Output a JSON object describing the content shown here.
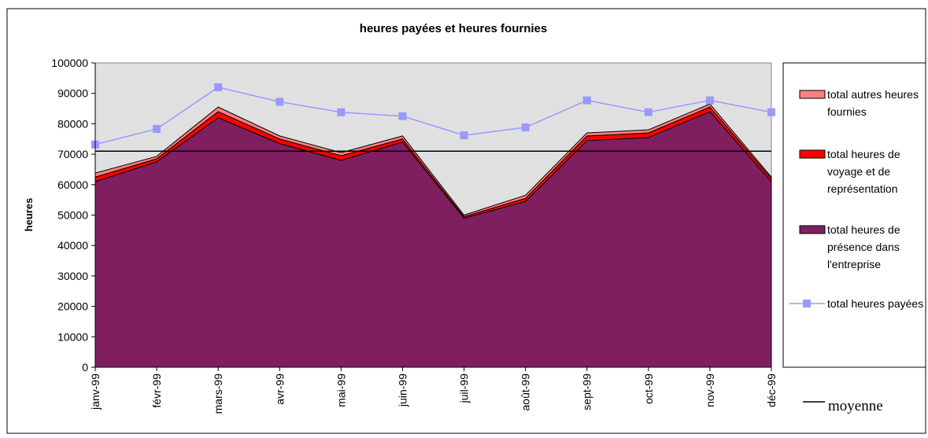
{
  "chart_data": {
    "type": "stacked-area-line",
    "title": "heures payées et heures fournies",
    "y_label": "heures",
    "categories": [
      "janv-99",
      "févr-99",
      "mars-99",
      "avr-99",
      "mai-99",
      "juin-99",
      "juil-99",
      "août-99",
      "sept-99",
      "oct-99",
      "nov-99",
      "déc-99"
    ],
    "series": [
      {
        "name": "total heures de présence dans l'entreprise",
        "color": "#7f1f5f",
        "kind": "area",
        "values": [
          61000,
          67500,
          82000,
          73500,
          68000,
          74000,
          49000,
          54500,
          74500,
          75500,
          84000,
          61000
        ]
      },
      {
        "name": "total heures de voyage et de représentation",
        "color": "#ff0000",
        "kind": "area",
        "values": [
          1500,
          1000,
          2000,
          1500,
          1500,
          1000,
          500,
          1000,
          1500,
          1500,
          1500,
          1000
        ]
      },
      {
        "name": "total autres heures fournies",
        "color": "#ff8080",
        "kind": "area",
        "values": [
          1300,
          800,
          1500,
          1000,
          1000,
          1000,
          500,
          1000,
          1000,
          1000,
          1000,
          500
        ]
      },
      {
        "name": "total heures payées",
        "color": "#9999ff",
        "kind": "line",
        "values": [
          73200,
          78300,
          92000,
          87200,
          83800,
          82500,
          76200,
          78800,
          87700,
          83800,
          87700,
          83800
        ]
      },
      {
        "name": "moyenne",
        "color": "#000000",
        "kind": "line-plain",
        "values": [
          71000,
          71000,
          71000,
          71000,
          71000,
          71000,
          71000,
          71000,
          71000,
          71000,
          71000,
          71000
        ]
      }
    ],
    "ylim": [
      0,
      100000
    ],
    "yticks": [
      0,
      10000,
      20000,
      30000,
      40000,
      50000,
      60000,
      70000,
      80000,
      90000,
      100000
    ],
    "grid": false,
    "plot_background": "#e0e0e0",
    "legend": "right"
  }
}
